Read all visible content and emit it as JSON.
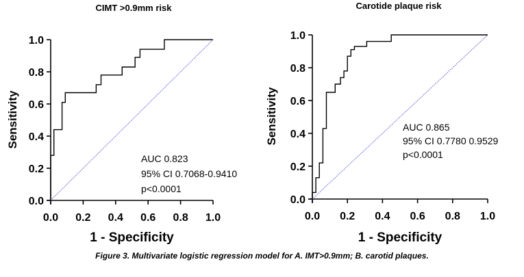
{
  "chart_data": [
    {
      "type": "line",
      "title": "CIMT >0.9mm risk",
      "xlabel": "1 - Specificity",
      "ylabel": "Sensitivity",
      "xlim": [
        0,
        1
      ],
      "ylim": [
        0,
        1
      ],
      "xticks": [
        "0.0",
        "0.2",
        "0.4",
        "0.6",
        "0.8",
        "1.0"
      ],
      "yticks": [
        "0.0",
        "0.2",
        "0.4",
        "0.6",
        "0.8",
        "1.0"
      ],
      "series": [
        {
          "name": "ROC",
          "x": [
            0.0,
            0.0,
            0.02,
            0.02,
            0.07,
            0.07,
            0.09,
            0.09,
            0.28,
            0.28,
            0.31,
            0.31,
            0.44,
            0.44,
            0.52,
            0.52,
            0.55,
            0.55,
            0.7,
            0.7,
            1.0
          ],
          "y": [
            0.0,
            0.28,
            0.28,
            0.44,
            0.44,
            0.61,
            0.61,
            0.67,
            0.67,
            0.72,
            0.72,
            0.78,
            0.78,
            0.83,
            0.83,
            0.89,
            0.89,
            0.94,
            0.94,
            1.0,
            1.0
          ]
        },
        {
          "name": "Reference",
          "x": [
            0,
            1
          ],
          "y": [
            0,
            1
          ]
        }
      ],
      "annotations": [
        "AUC 0.823",
        "95% CI 0.7068-0.9410",
        "p<0.0001"
      ]
    },
    {
      "type": "line",
      "title": "Carotide plaque risk",
      "xlabel": "1 - Specificity",
      "ylabel": "Sensitivity",
      "xlim": [
        0,
        1
      ],
      "ylim": [
        0,
        1
      ],
      "xticks": [
        "0.0",
        "0.2",
        "0.4",
        "0.6",
        "0.8",
        "1.0"
      ],
      "yticks": [
        "0.0",
        "0.2",
        "0.4",
        "0.6",
        "0.8",
        "1.0"
      ],
      "series": [
        {
          "name": "ROC",
          "x": [
            0.0,
            0.0,
            0.02,
            0.02,
            0.04,
            0.04,
            0.06,
            0.06,
            0.08,
            0.08,
            0.13,
            0.13,
            0.16,
            0.16,
            0.18,
            0.18,
            0.2,
            0.2,
            0.22,
            0.22,
            0.24,
            0.24,
            0.31,
            0.31,
            0.45,
            0.45,
            1.0
          ],
          "y": [
            0.0,
            0.04,
            0.04,
            0.13,
            0.13,
            0.22,
            0.22,
            0.43,
            0.43,
            0.65,
            0.65,
            0.7,
            0.7,
            0.74,
            0.74,
            0.78,
            0.78,
            0.87,
            0.87,
            0.91,
            0.91,
            0.93,
            0.93,
            0.96,
            0.96,
            1.0,
            1.0
          ]
        },
        {
          "name": "Reference",
          "x": [
            0,
            1
          ],
          "y": [
            0,
            1
          ]
        }
      ],
      "annotations": [
        "AUC 0.865",
        "95% CI 0.7780 0.9529",
        "p<0.0001"
      ]
    }
  ],
  "caption": "Figure 3. Multivariate logistic regression model for A. IMT>0.9mm; B. carotid plaques.",
  "colors": {
    "roc": "#000000",
    "reference": "#3b3bd6",
    "axis": "#000000"
  }
}
